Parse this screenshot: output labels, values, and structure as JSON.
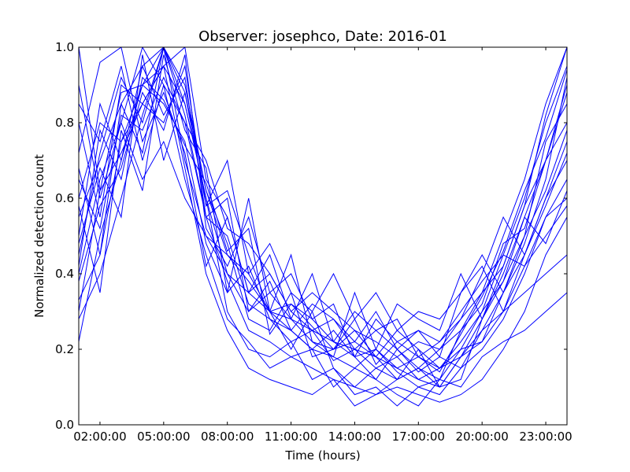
{
  "chart_data": {
    "type": "line",
    "title": "Observer: josephco, Date: 2016-01",
    "xlabel": "Time (hours)",
    "ylabel": "Normalized detection count",
    "xlim": [
      1,
      24
    ],
    "ylim": [
      0.0,
      1.0
    ],
    "x_ticks": [
      {
        "value": 2,
        "label": "02:00:00"
      },
      {
        "value": 5,
        "label": "05:00:00"
      },
      {
        "value": 8,
        "label": "08:00:00"
      },
      {
        "value": 11,
        "label": "11:00:00"
      },
      {
        "value": 14,
        "label": "14:00:00"
      },
      {
        "value": 17,
        "label": "17:00:00"
      },
      {
        "value": 20,
        "label": "20:00:00"
      },
      {
        "value": 23,
        "label": "23:00:00"
      }
    ],
    "y_ticks": [
      {
        "value": 0.0,
        "label": "0.0"
      },
      {
        "value": 0.2,
        "label": "0.2"
      },
      {
        "value": 0.4,
        "label": "0.4"
      },
      {
        "value": 0.6,
        "label": "0.6"
      },
      {
        "value": 0.8,
        "label": "0.8"
      },
      {
        "value": 1.0,
        "label": "1.0"
      }
    ],
    "line_color": "#0000ff",
    "grid": false,
    "x": [
      1,
      2,
      3,
      4,
      5,
      6,
      7,
      8,
      9,
      10,
      11,
      12,
      13,
      14,
      15,
      16,
      17,
      18,
      19,
      20,
      21,
      22,
      23,
      24
    ],
    "series": [
      {
        "values": [
          0.55,
          0.7,
          0.85,
          0.95,
          1.0,
          0.9,
          0.62,
          0.45,
          0.38,
          0.3,
          0.25,
          0.2,
          0.18,
          0.15,
          0.2,
          0.14,
          0.1,
          0.12,
          0.2,
          0.3,
          0.45,
          0.6,
          0.8,
          0.95
        ]
      },
      {
        "values": [
          0.4,
          0.65,
          0.8,
          1.0,
          0.9,
          0.8,
          0.55,
          0.5,
          0.32,
          0.28,
          0.22,
          0.25,
          0.17,
          0.2,
          0.15,
          0.18,
          0.12,
          0.1,
          0.18,
          0.28,
          0.4,
          0.55,
          0.7,
          0.9
        ]
      },
      {
        "values": [
          0.22,
          0.5,
          0.7,
          0.9,
          0.95,
          0.85,
          0.6,
          0.4,
          0.3,
          0.35,
          0.28,
          0.22,
          0.2,
          0.25,
          0.18,
          0.12,
          0.15,
          0.2,
          0.25,
          0.35,
          0.5,
          0.65,
          0.85,
          1.0
        ]
      },
      {
        "values": [
          0.6,
          0.8,
          0.75,
          0.9,
          1.0,
          0.7,
          0.5,
          0.45,
          0.4,
          0.3,
          0.32,
          0.28,
          0.22,
          0.18,
          0.2,
          0.15,
          0.18,
          0.15,
          0.22,
          0.3,
          0.38,
          0.5,
          0.75,
          0.85
        ]
      },
      {
        "values": [
          0.8,
          0.55,
          0.9,
          0.85,
          0.95,
          1.0,
          0.65,
          0.55,
          0.35,
          0.4,
          0.3,
          0.25,
          0.28,
          0.2,
          0.25,
          0.2,
          0.14,
          0.18,
          0.15,
          0.25,
          0.35,
          0.45,
          0.6,
          0.75
        ]
      },
      {
        "values": [
          0.33,
          0.45,
          0.75,
          0.85,
          0.8,
          0.95,
          0.58,
          0.62,
          0.45,
          0.3,
          0.2,
          0.3,
          0.15,
          0.1,
          0.15,
          0.12,
          0.2,
          0.1,
          0.12,
          0.28,
          0.42,
          0.58,
          0.82,
          1.0
        ]
      },
      {
        "values": [
          1.0,
          0.62,
          0.88,
          0.9,
          0.85,
          0.75,
          0.48,
          0.35,
          0.42,
          0.28,
          0.25,
          0.2,
          0.25,
          0.18,
          0.12,
          0.2,
          0.15,
          0.12,
          0.25,
          0.32,
          0.48,
          0.52,
          0.7,
          0.8
        ]
      },
      {
        "values": [
          0.45,
          0.72,
          0.92,
          0.8,
          1.0,
          0.88,
          0.62,
          0.48,
          0.28,
          0.25,
          0.35,
          0.18,
          0.2,
          0.22,
          0.18,
          0.25,
          0.2,
          0.15,
          0.2,
          0.22,
          0.35,
          0.48,
          0.65,
          0.92
        ]
      },
      {
        "values": [
          0.65,
          0.52,
          0.82,
          0.78,
          0.92,
          0.8,
          0.7,
          0.52,
          0.48,
          0.4,
          0.3,
          0.35,
          0.3,
          0.25,
          0.22,
          0.18,
          0.22,
          0.2,
          0.28,
          0.4,
          0.55,
          0.45,
          0.6,
          0.7
        ]
      },
      {
        "values": [
          0.5,
          0.85,
          0.7,
          0.95,
          0.82,
          0.92,
          0.55,
          0.38,
          0.25,
          0.22,
          0.18,
          0.15,
          0.12,
          0.1,
          0.08,
          0.1,
          0.08,
          0.06,
          0.08,
          0.12,
          0.2,
          0.3,
          0.45,
          0.55
        ]
      },
      {
        "values": [
          0.28,
          0.4,
          0.6,
          0.82,
          1.0,
          0.85,
          0.6,
          0.3,
          0.2,
          0.18,
          0.22,
          0.12,
          0.15,
          0.08,
          0.1,
          0.05,
          0.1,
          0.08,
          0.15,
          0.2,
          0.28,
          0.4,
          0.55,
          0.6
        ]
      },
      {
        "values": [
          0.72,
          0.96,
          1.0,
          0.75,
          0.88,
          0.72,
          0.42,
          0.55,
          0.35,
          0.45,
          0.28,
          0.4,
          0.22,
          0.3,
          0.25,
          0.28,
          0.18,
          0.22,
          0.3,
          0.38,
          0.45,
          0.42,
          0.55,
          0.65
        ]
      },
      {
        "values": [
          0.38,
          0.58,
          0.68,
          0.88,
          0.78,
          0.98,
          0.52,
          0.42,
          0.55,
          0.35,
          0.4,
          0.28,
          0.32,
          0.18,
          0.28,
          0.22,
          0.25,
          0.18,
          0.35,
          0.45,
          0.35,
          0.5,
          0.62,
          0.78
        ]
      },
      {
        "values": [
          0.58,
          0.35,
          0.78,
          0.62,
          0.98,
          0.78,
          0.68,
          0.35,
          0.6,
          0.3,
          0.45,
          0.22,
          0.18,
          0.35,
          0.2,
          0.32,
          0.28,
          0.25,
          0.4,
          0.28,
          0.38,
          0.55,
          0.48,
          0.62
        ]
      },
      {
        "values": [
          0.85,
          0.75,
          0.95,
          0.7,
          0.9,
          0.65,
          0.45,
          0.28,
          0.22,
          0.15,
          0.18,
          0.2,
          0.1,
          0.15,
          0.12,
          0.08,
          0.05,
          0.12,
          0.1,
          0.18,
          0.22,
          0.25,
          0.3,
          0.35
        ]
      },
      {
        "values": [
          0.48,
          0.68,
          0.55,
          0.98,
          0.7,
          0.88,
          0.58,
          0.7,
          0.4,
          0.48,
          0.35,
          0.3,
          0.4,
          0.28,
          0.35,
          0.25,
          0.3,
          0.28,
          0.35,
          0.42,
          0.3,
          0.45,
          0.58,
          0.72
        ]
      },
      {
        "values": [
          0.3,
          0.62,
          0.72,
          0.85,
          0.95,
          0.68,
          0.4,
          0.25,
          0.15,
          0.12,
          0.1,
          0.08,
          0.12,
          0.05,
          0.08,
          0.12,
          0.15,
          0.1,
          0.18,
          0.22,
          0.3,
          0.42,
          0.5,
          0.58
        ]
      },
      {
        "values": [
          0.68,
          0.45,
          0.85,
          0.72,
          1.0,
          0.82,
          0.55,
          0.6,
          0.3,
          0.38,
          0.25,
          0.32,
          0.28,
          0.22,
          0.3,
          0.2,
          0.25,
          0.22,
          0.28,
          0.35,
          0.42,
          0.58,
          0.7,
          0.88
        ]
      },
      {
        "values": [
          0.42,
          0.78,
          0.65,
          0.92,
          0.86,
          0.74,
          0.64,
          0.46,
          0.52,
          0.24,
          0.32,
          0.26,
          0.2,
          0.28,
          0.16,
          0.22,
          0.18,
          0.14,
          0.24,
          0.34,
          0.46,
          0.62,
          0.76,
          0.94
        ]
      },
      {
        "values": [
          0.9,
          0.6,
          0.8,
          0.65,
          0.75,
          0.6,
          0.5,
          0.4,
          0.35,
          0.3,
          0.28,
          0.25,
          0.22,
          0.2,
          0.18,
          0.15,
          0.12,
          0.15,
          0.18,
          0.25,
          0.3,
          0.35,
          0.4,
          0.45
        ]
      }
    ]
  }
}
